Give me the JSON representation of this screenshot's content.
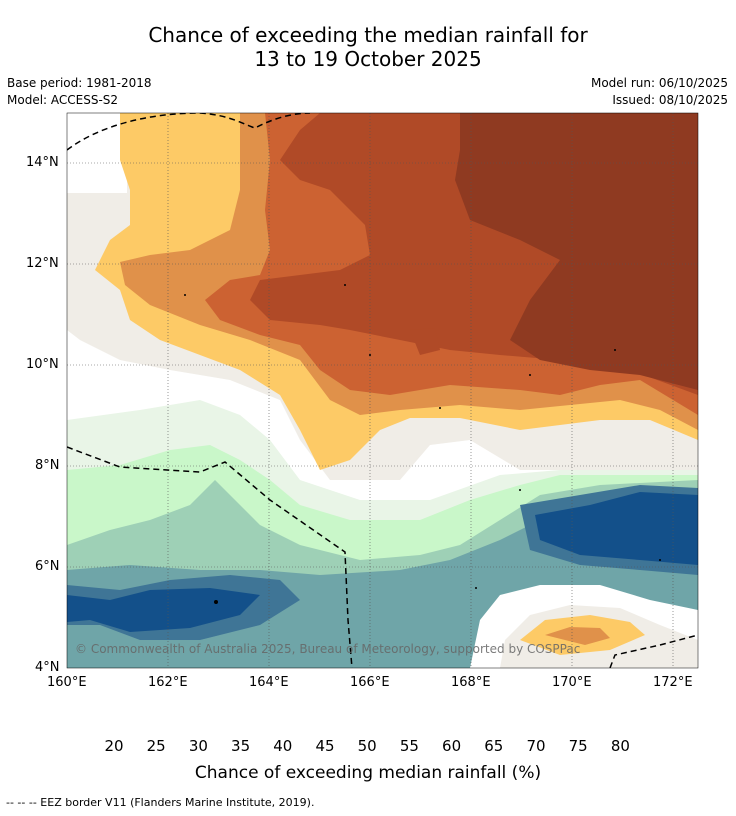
{
  "title_line1": "Chance of exceeding the median rainfall for",
  "title_line2": "13 to 19 October 2025",
  "meta": {
    "base_period": "Base period: 1981-2018",
    "model": "Model: ACCESS-S2",
    "model_run": "Model run: 06/10/2025",
    "issued": "Issued: 08/10/2025"
  },
  "map": {
    "lat_labels": [
      "14°N",
      "12°N",
      "10°N",
      "8°N",
      "6°N",
      "4°N"
    ],
    "lon_labels": [
      "160°E",
      "162°E",
      "164°E",
      "166°E",
      "168°E",
      "170°E",
      "172°E"
    ],
    "copyright": "© Commonwealth of Australia 2025, Bureau of Meteorology, supported by COSPPac"
  },
  "colorbar": {
    "ticks": [
      "20",
      "25",
      "30",
      "35",
      "40",
      "45",
      "50",
      "55",
      "60",
      "65",
      "70",
      "75",
      "80"
    ],
    "label": "Chance of exceeding median rainfall (%)",
    "colors": [
      "#8f3a21",
      "#b04a27",
      "#cc6232",
      "#e0914a",
      "#fdca66",
      "#f0ede7",
      "#ffffff",
      "#ffffff",
      "#e9f5e7",
      "#c9f7c9",
      "#9ed0b6",
      "#6fa5a8",
      "#3f7596",
      "#13508a"
    ]
  },
  "footer": "--  --  -- EEZ border V11 (Flanders Marine Institute, 2019)."
}
